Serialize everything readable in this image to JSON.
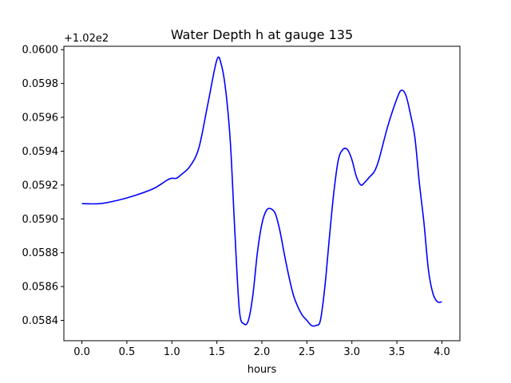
{
  "chart_data": {
    "type": "line",
    "title": "Water Depth h at gauge 135",
    "xlabel": "hours",
    "ylabel": "",
    "offset_text": "+1.02e2",
    "xlim": [
      -0.2,
      4.2
    ],
    "ylim": [
      0.05828,
      0.06002
    ],
    "x_ticks": [
      0.0,
      0.5,
      1.0,
      1.5,
      2.0,
      2.5,
      3.0,
      3.5,
      4.0
    ],
    "x_tick_labels": [
      "0.0",
      "0.5",
      "1.0",
      "1.5",
      "2.0",
      "2.5",
      "3.0",
      "3.5",
      "4.0"
    ],
    "y_ticks": [
      0.0584,
      0.0586,
      0.0588,
      0.059,
      0.0592,
      0.0594,
      0.0596,
      0.0598,
      0.06
    ],
    "y_tick_labels": [
      "0.0584",
      "0.0586",
      "0.0588",
      "0.0590",
      "0.0592",
      "0.0594",
      "0.0596",
      "0.0598",
      "0.0600"
    ],
    "grid": false,
    "legend": "none",
    "series": [
      {
        "color": "#0000ff",
        "x": [
          0.0,
          0.2,
          0.4,
          0.6,
          0.8,
          0.95,
          1.0,
          1.05,
          1.1,
          1.2,
          1.3,
          1.4,
          1.5,
          1.55,
          1.6,
          1.65,
          1.7,
          1.75,
          1.8,
          1.85,
          1.9,
          1.95,
          2.0,
          2.05,
          2.1,
          2.15,
          2.2,
          2.25,
          2.3,
          2.35,
          2.4,
          2.45,
          2.5,
          2.55,
          2.6,
          2.65,
          2.7,
          2.75,
          2.8,
          2.85,
          2.9,
          2.95,
          3.0,
          3.05,
          3.1,
          3.15,
          3.2,
          3.25,
          3.3,
          3.4,
          3.5,
          3.55,
          3.6,
          3.65,
          3.7,
          3.75,
          3.8,
          3.85,
          3.9,
          3.95,
          4.0
        ],
        "y": [
          0.05909,
          0.05909,
          0.05911,
          0.05914,
          0.05918,
          0.05923,
          0.05924,
          0.05924,
          0.05926,
          0.05931,
          0.05942,
          0.05968,
          0.05994,
          0.05991,
          0.05975,
          0.05945,
          0.05892,
          0.05846,
          0.05838,
          0.0584,
          0.05855,
          0.0588,
          0.05897,
          0.05905,
          0.05906,
          0.05903,
          0.05893,
          0.05879,
          0.05866,
          0.05855,
          0.05848,
          0.05843,
          0.0584,
          0.05837,
          0.05837,
          0.0584,
          0.0586,
          0.05889,
          0.05916,
          0.05935,
          0.05941,
          0.05941,
          0.05935,
          0.05925,
          0.0592,
          0.05922,
          0.05925,
          0.05928,
          0.05935,
          0.05955,
          0.05971,
          0.05976,
          0.05973,
          0.05962,
          0.05948,
          0.05921,
          0.05898,
          0.0587,
          0.05856,
          0.05851,
          0.05851
        ]
      }
    ]
  }
}
